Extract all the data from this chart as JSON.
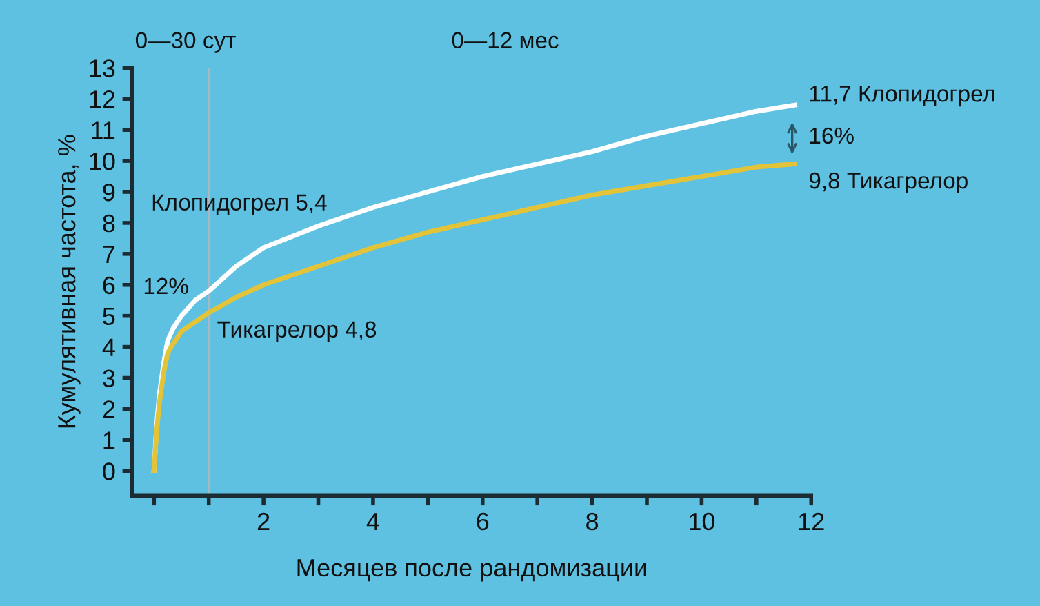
{
  "chart_data": {
    "type": "line",
    "xlabel": "Месяцев после рандомизации",
    "ylabel": "Кумулятивная частота, %",
    "xlim": [
      -0.4,
      12
    ],
    "ylim": [
      -0.8,
      13
    ],
    "xticks": [
      {
        "value": 0,
        "label": null
      },
      {
        "value": 1,
        "label": null
      },
      2,
      {
        "value": 3,
        "label": null
      },
      4,
      {
        "value": 5,
        "label": null
      },
      6,
      {
        "value": 7,
        "label": null
      },
      8,
      {
        "value": 9,
        "label": null
      },
      10,
      {
        "value": 11,
        "label": null
      },
      12
    ],
    "yticks": [
      0,
      1,
      2,
      3,
      4,
      5,
      6,
      7,
      8,
      9,
      10,
      11,
      12,
      13
    ],
    "grid": false,
    "legend": false,
    "marker": "none",
    "line_style": "solid",
    "series": [
      {
        "color": "#ffffff",
        "x": [
          0,
          0.05,
          0.1,
          0.18,
          0.25,
          0.35,
          0.5,
          0.75,
          1,
          1.5,
          2,
          3,
          4,
          5,
          6,
          7,
          8,
          9,
          10,
          11,
          11.7
        ],
        "values": [
          0,
          1.5,
          2.5,
          3.5,
          4.2,
          4.6,
          5.0,
          5.5,
          5.8,
          6.6,
          7.2,
          7.9,
          8.5,
          9.0,
          9.5,
          9.9,
          10.3,
          10.8,
          11.2,
          11.6,
          11.8
        ]
      },
      {
        "color": "#e3c338",
        "x": [
          0,
          0.05,
          0.1,
          0.18,
          0.25,
          0.35,
          0.5,
          0.75,
          1,
          1.5,
          2,
          3,
          4,
          5,
          6,
          7,
          8,
          9,
          10,
          11,
          11.7
        ],
        "values": [
          0,
          1.3,
          2.2,
          3.2,
          3.8,
          4.1,
          4.5,
          4.8,
          5.1,
          5.6,
          6.0,
          6.6,
          7.2,
          7.7,
          8.1,
          8.5,
          8.9,
          9.2,
          9.5,
          9.8,
          9.9
        ]
      }
    ],
    "ref_lines": [
      {
        "axis": "x",
        "value": 1,
        "label": "0—30 сут",
        "color": "#a9b8bf"
      }
    ],
    "annotations": [
      "0—12 мес",
      "Клопидогрел 5,4",
      "12%",
      "Тикагрелор 4,8",
      "11,7 Клопидогрел",
      "16%",
      "9,8 Тикагрелор"
    ]
  }
}
